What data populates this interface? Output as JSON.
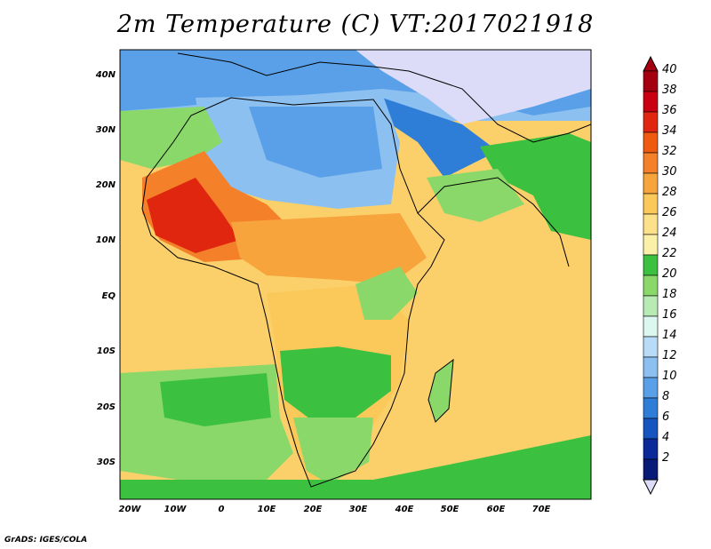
{
  "title": "2m Temperature (C) VT:2017021918",
  "credit": "GrADS: IGES/COLA",
  "lat_labels": [
    "40N",
    "30N",
    "20N",
    "10N",
    "EQ",
    "10S",
    "20S",
    "30S"
  ],
  "lon_labels": [
    "20W",
    "10W",
    "0",
    "10E",
    "20E",
    "30E",
    "40E",
    "50E",
    "60E",
    "70E"
  ],
  "colorbar": {
    "labels": [
      "40",
      "38",
      "36",
      "34",
      "32",
      "30",
      "28",
      "26",
      "24",
      "22",
      "20",
      "18",
      "16",
      "14",
      "12",
      "10",
      "8",
      "6",
      "4",
      "2"
    ],
    "colors": [
      "#a50010",
      "#c8000f",
      "#e0260f",
      "#f05a10",
      "#f4802a",
      "#f7a43c",
      "#fbc95a",
      "#fde08a",
      "#fbf0a8",
      "#3cc040",
      "#8ad86a",
      "#b8eab4",
      "#dcf6f0",
      "#b8dcf8",
      "#8cc0f0",
      "#5aa0e8",
      "#2e7ed8",
      "#1654c0",
      "#0a2a9a",
      "#071a78"
    ],
    "under_color": "#dcdcf8",
    "over_color": "#a50010"
  },
  "map": {
    "domain_lon": [
      -23,
      80
    ],
    "domain_lat": [
      -36,
      46
    ],
    "ocean_color": "#fbd06a"
  }
}
